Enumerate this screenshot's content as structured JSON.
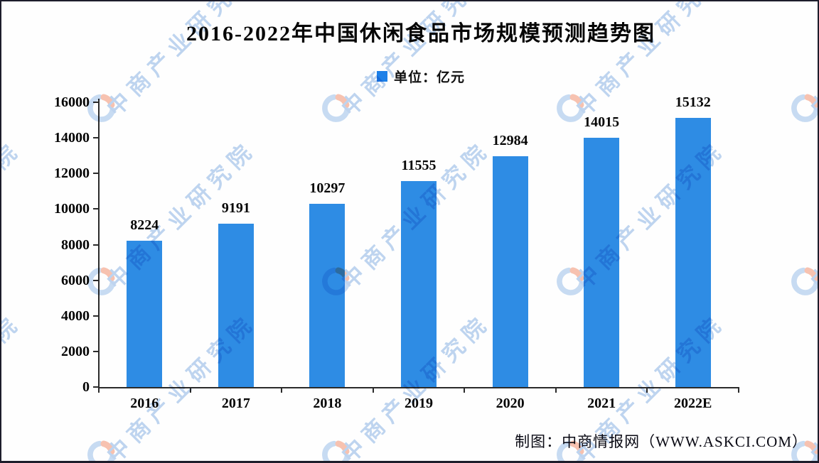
{
  "page": {
    "title": "2016-2022年中国休闲食品市场规模预测趋势图",
    "legend": {
      "label": "单位：亿元",
      "marker_color": "#1d80e8"
    },
    "footer": "制图：中商情报网（WWW.ASKCI.COM）",
    "watermark": {
      "text": "中商产业研究院",
      "text_color": "#9cbfe8",
      "logo_blue": "#abc9ec",
      "logo_orange": "#f5a287"
    }
  },
  "chart_data": {
    "type": "bar",
    "title": "2016-2022年中国休闲食品市场规模预测趋势图",
    "unit_label": "单位：亿元",
    "categories": [
      "2016",
      "2017",
      "2018",
      "2019",
      "2020",
      "2021",
      "2022E"
    ],
    "values": [
      8224,
      9191,
      10297,
      11555,
      12984,
      14015,
      15132
    ],
    "xlabel": "",
    "ylabel": "",
    "ylim": [
      0,
      16000
    ],
    "ytick_step": 2000,
    "bar_color": "#2e8ce4",
    "grid": false,
    "data_labels": true,
    "legend_position": "top-center",
    "source_credit": "制图：中商情报网（WWW.ASKCI.COM）"
  }
}
